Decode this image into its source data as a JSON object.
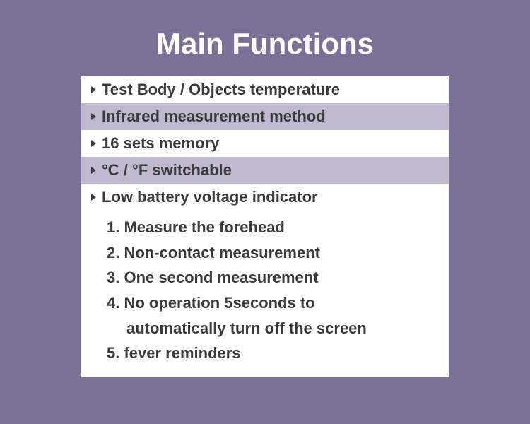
{
  "colors": {
    "page_bg": "#7b7196",
    "title_color": "#ffffff",
    "panel_row_white": "#ffffff",
    "panel_row_alt": "#bfb9d0",
    "text_color": "#3a3a3a",
    "bullet_color": "#3a3a3a"
  },
  "typography": {
    "title_fontsize": 42,
    "row_fontsize": 22,
    "numbered_fontsize": 22
  },
  "title": "Main Functions",
  "bullets": [
    {
      "text": "Test Body / Objects temperature",
      "alt": false
    },
    {
      "text": " Infrared measurement method",
      "alt": true
    },
    {
      "text": " 16 sets memory",
      "alt": false
    },
    {
      "text": " °C / °F switchable",
      "alt": true
    },
    {
      "text": "Low battery voltage indicator",
      "alt": false
    }
  ],
  "numbered": [
    "1. Measure the forehead",
    "2. Non-contact measurement",
    "3. One second measurement",
    "4. No operation 5seconds to",
    "     automatically turn off the screen",
    "5. fever reminders"
  ]
}
